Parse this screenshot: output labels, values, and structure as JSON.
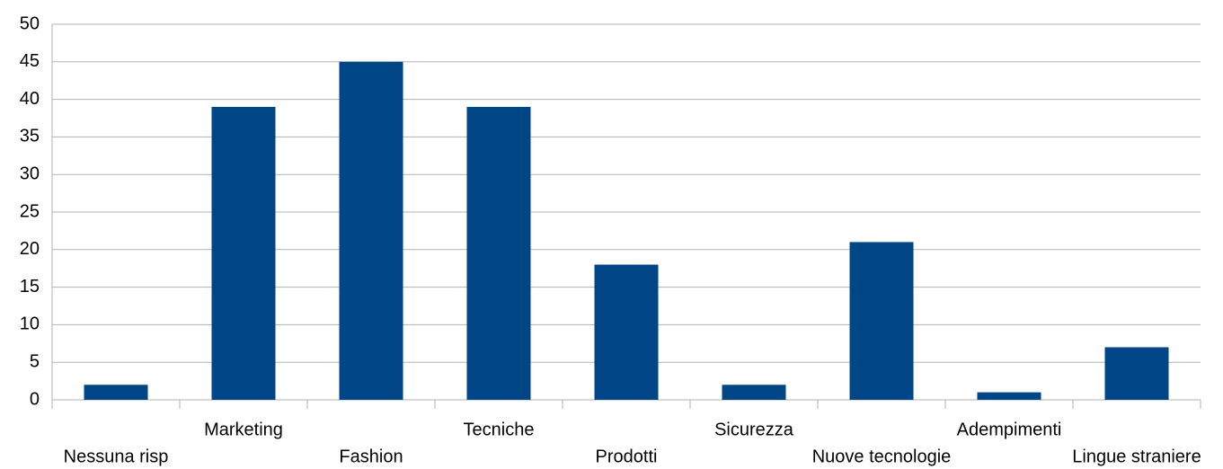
{
  "chart_data": {
    "type": "bar",
    "categories": [
      "Nessuna risp",
      "Marketing",
      "Fashion",
      "Tecniche",
      "Prodotti",
      "Sicurezza",
      "Nuove tecnologie",
      "Adempimenti",
      "Lingue straniere"
    ],
    "values": [
      2,
      39,
      45,
      39,
      18,
      2,
      21,
      1,
      7
    ],
    "color": "#004586",
    "ylim": [
      0,
      50
    ],
    "yticks": [
      0,
      5,
      10,
      15,
      20,
      25,
      30,
      35,
      40,
      45,
      50
    ],
    "grid": true
  }
}
